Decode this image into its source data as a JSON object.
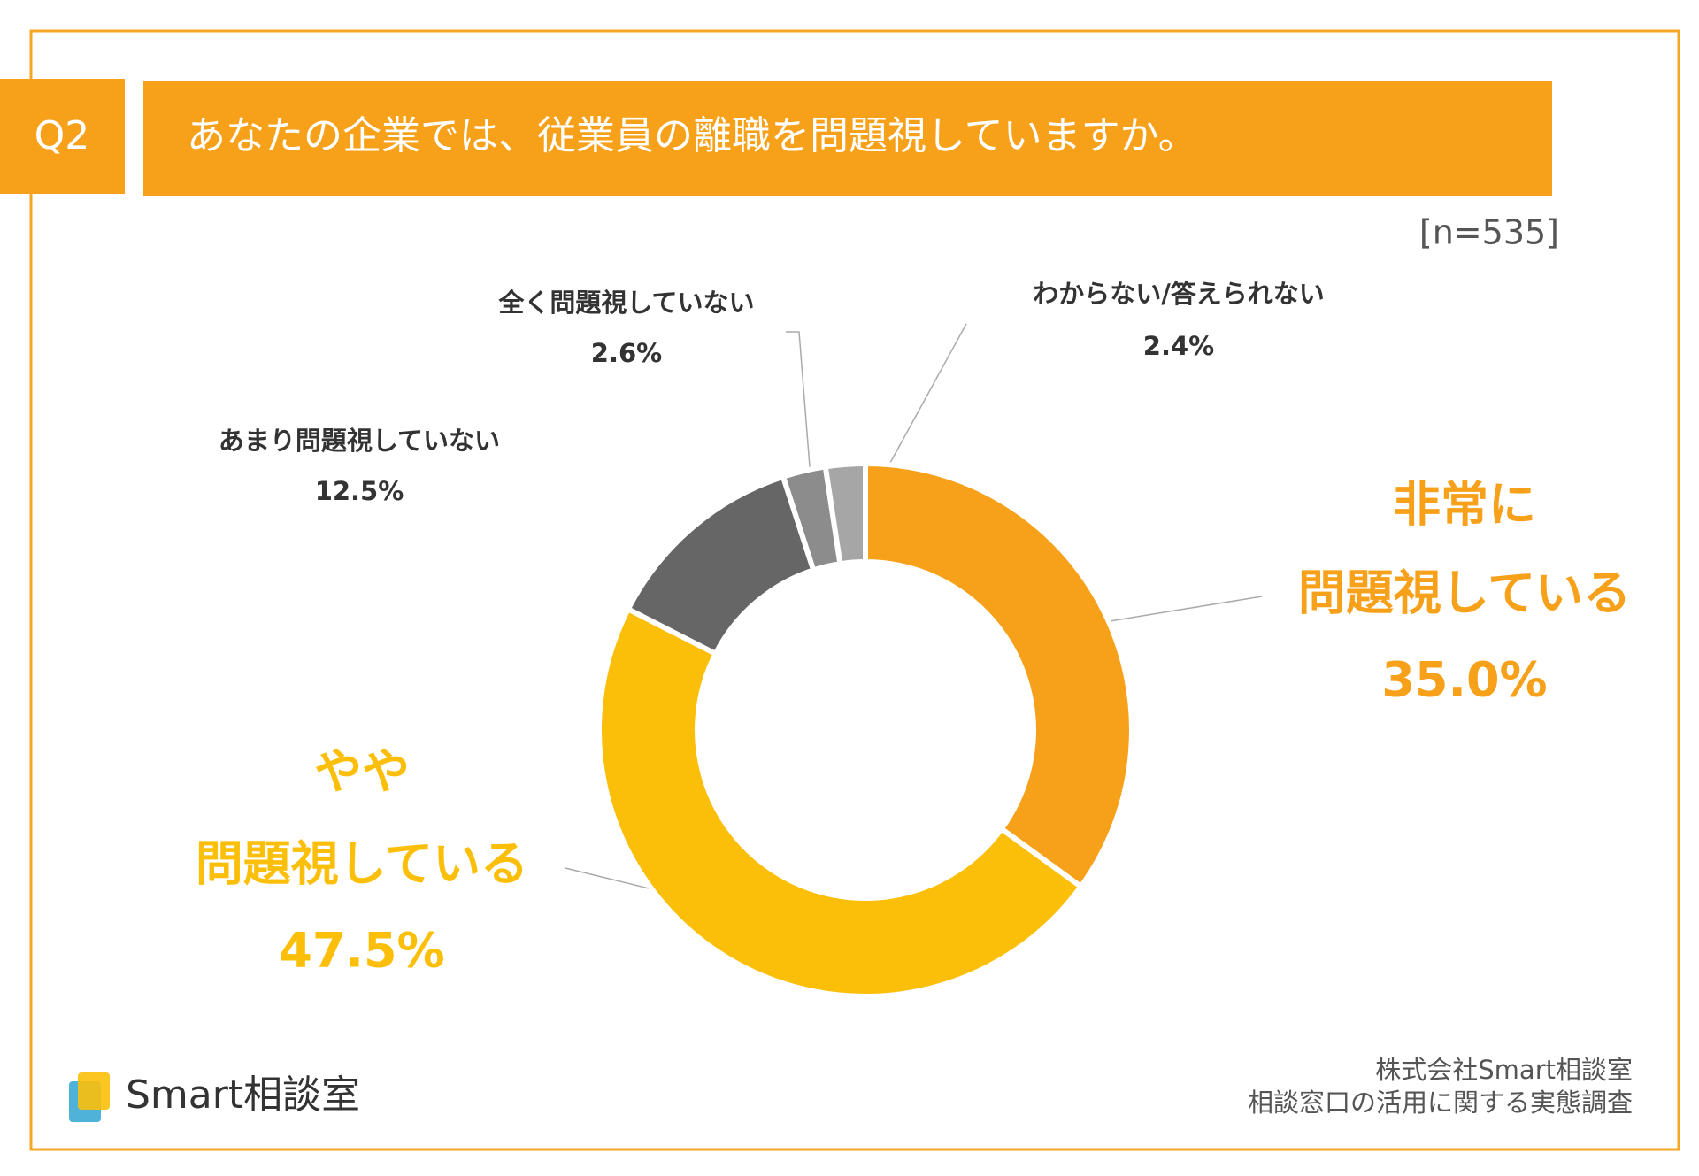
{
  "chart_data": {
    "type": "donut",
    "question": "Q2",
    "title": "あなたの企業では、従業員の離職を問題視していますか。",
    "note": "[n=535]",
    "categories": [
      [
        "非常に",
        "問題視している"
      ],
      [
        "やや",
        "問題視している"
      ],
      [
        "あまり問題視していない"
      ],
      [
        "全く問題視していない"
      ],
      [
        "わからない/答えられない"
      ]
    ],
    "values": [
      35.0,
      47.5,
      12.5,
      2.6,
      2.4
    ],
    "value_labels": [
      "35.0%",
      "47.5%",
      "12.5%",
      "2.6%",
      "2.4%"
    ],
    "colors": [
      "#f7a11a",
      "#fbbf0a",
      "#666666",
      "#8c8c8c",
      "#a6a6a6"
    ],
    "logo": "Smart相談室",
    "source": [
      "株式会社Smart相談室",
      "相談窓口の活用に関する実態調査"
    ]
  }
}
